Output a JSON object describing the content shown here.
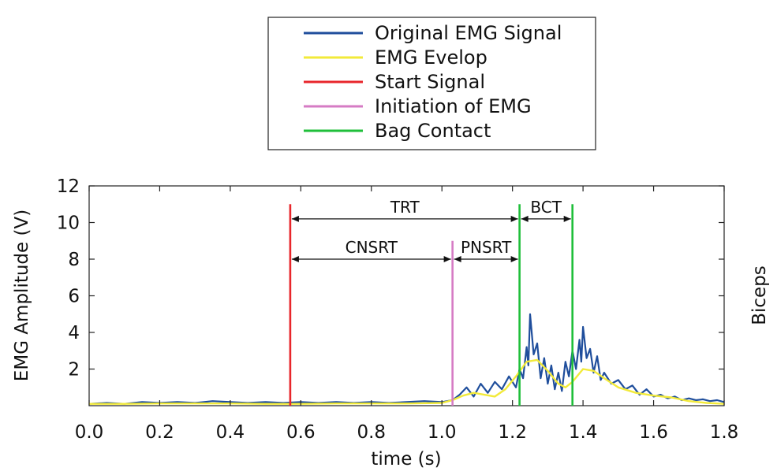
{
  "chart_data": {
    "type": "line",
    "xlabel": "time (s)",
    "ylabel": "EMG Amplitude (V)",
    "side_label": "Biceps",
    "xlim": [
      0.0,
      1.8
    ],
    "ylim": [
      0,
      12
    ],
    "x_ticks": [
      "0.0",
      "0.2",
      "0.4",
      "0.6",
      "0.8",
      "1.0",
      "1.2",
      "1.4",
      "1.6",
      "1.8"
    ],
    "y_ticks": [
      "2",
      "4",
      "6",
      "8",
      "10",
      "12"
    ],
    "x_tick_values": [
      0.0,
      0.2,
      0.4,
      0.6,
      0.8,
      1.0,
      1.2,
      1.4,
      1.6,
      1.8
    ],
    "y_tick_values": [
      2,
      4,
      6,
      8,
      10,
      12
    ],
    "grid": false,
    "legend_position": "top-center",
    "legend": [
      {
        "label": "Original EMG Signal",
        "color": "#1f4e9c"
      },
      {
        "label": "EMG Evelop",
        "color": "#f2ea3a"
      },
      {
        "label": "Start Signal",
        "color": "#e8262b"
      },
      {
        "label": "Initiation of EMG",
        "color": "#d67bc4"
      },
      {
        "label": "Bag Contact",
        "color": "#1fbf3a"
      }
    ],
    "series": [
      {
        "name": "Original EMG Signal",
        "color": "#1f4e9c",
        "x": [
          0.0,
          0.05,
          0.1,
          0.15,
          0.2,
          0.25,
          0.3,
          0.35,
          0.4,
          0.45,
          0.5,
          0.55,
          0.6,
          0.65,
          0.7,
          0.75,
          0.8,
          0.85,
          0.9,
          0.95,
          1.0,
          1.03,
          1.05,
          1.07,
          1.09,
          1.11,
          1.13,
          1.15,
          1.17,
          1.19,
          1.21,
          1.22,
          1.23,
          1.24,
          1.245,
          1.25,
          1.26,
          1.27,
          1.28,
          1.29,
          1.3,
          1.31,
          1.32,
          1.33,
          1.34,
          1.35,
          1.36,
          1.37,
          1.38,
          1.39,
          1.395,
          1.4,
          1.41,
          1.42,
          1.43,
          1.44,
          1.45,
          1.46,
          1.48,
          1.5,
          1.52,
          1.54,
          1.56,
          1.58,
          1.6,
          1.62,
          1.64,
          1.66,
          1.68,
          1.7,
          1.72,
          1.74,
          1.76,
          1.78,
          1.8
        ],
        "y": [
          0.1,
          0.15,
          0.1,
          0.2,
          0.15,
          0.2,
          0.15,
          0.25,
          0.2,
          0.15,
          0.2,
          0.15,
          0.2,
          0.15,
          0.2,
          0.15,
          0.2,
          0.15,
          0.2,
          0.25,
          0.2,
          0.3,
          0.6,
          1.0,
          0.5,
          1.2,
          0.7,
          1.3,
          0.9,
          1.6,
          1.0,
          2.0,
          1.5,
          3.2,
          2.2,
          5.0,
          2.8,
          3.4,
          1.5,
          2.6,
          1.2,
          2.2,
          0.9,
          1.8,
          0.8,
          2.4,
          1.6,
          3.0,
          2.0,
          3.6,
          2.4,
          4.3,
          2.6,
          3.1,
          1.8,
          2.7,
          1.4,
          1.8,
          1.2,
          1.4,
          0.9,
          1.1,
          0.6,
          0.9,
          0.5,
          0.6,
          0.4,
          0.5,
          0.3,
          0.4,
          0.3,
          0.35,
          0.25,
          0.3,
          0.2
        ]
      },
      {
        "name": "EMG Evelop",
        "color": "#f2ea3a",
        "x": [
          0.0,
          0.1,
          0.2,
          0.3,
          0.4,
          0.5,
          0.6,
          0.7,
          0.8,
          0.9,
          1.0,
          1.03,
          1.06,
          1.09,
          1.12,
          1.15,
          1.18,
          1.21,
          1.24,
          1.27,
          1.3,
          1.33,
          1.35,
          1.37,
          1.4,
          1.43,
          1.46,
          1.5,
          1.55,
          1.6,
          1.65,
          1.7,
          1.75,
          1.8
        ],
        "y": [
          0.1,
          0.1,
          0.12,
          0.12,
          0.12,
          0.1,
          0.1,
          0.12,
          0.12,
          0.12,
          0.15,
          0.3,
          0.55,
          0.7,
          0.6,
          0.5,
          0.9,
          1.6,
          2.4,
          2.5,
          1.9,
          1.2,
          1.0,
          1.3,
          2.0,
          1.9,
          1.5,
          1.0,
          0.7,
          0.55,
          0.45,
          0.25,
          0.15,
          0.1
        ]
      }
    ],
    "markers": [
      {
        "name": "Start Signal",
        "x": 0.57,
        "y_top": 11.0,
        "color": "#e8262b"
      },
      {
        "name": "Initiation of EMG",
        "x": 1.03,
        "y_top": 9.0,
        "color": "#d67bc4"
      },
      {
        "name": "Bag Contact",
        "x": 1.22,
        "y_top": 11.0,
        "color": "#1fbf3a"
      },
      {
        "name": "Bag Contact",
        "x": 1.37,
        "y_top": 11.0,
        "color": "#1fbf3a"
      }
    ],
    "annotations": [
      {
        "label": "TRT",
        "x_start": 0.57,
        "x_end": 1.22,
        "y": 10.2
      },
      {
        "label": "BCT",
        "x_start": 1.22,
        "x_end": 1.37,
        "y": 10.2
      },
      {
        "label": "CNSRT",
        "x_start": 0.57,
        "x_end": 1.03,
        "y": 8.0
      },
      {
        "label": "PNSRT",
        "x_start": 1.03,
        "x_end": 1.22,
        "y": 8.0
      }
    ]
  }
}
